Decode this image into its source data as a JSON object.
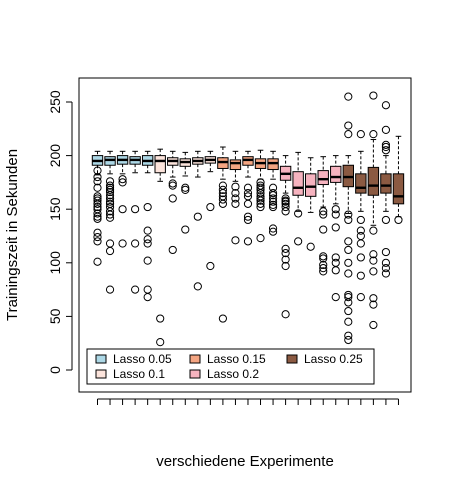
{
  "chart_data": {
    "type": "box",
    "ylabel": "Trainingszeit in Sekunden",
    "xlabel": "verschiedene Experimente",
    "ylim": [
      -12,
      268
    ],
    "yticks": [
      0,
      50,
      100,
      150,
      200,
      250
    ],
    "grid": false,
    "legend_position": "bottom-left",
    "legend": [
      {
        "label": "Lasso 0.05",
        "color": "#add8e6"
      },
      {
        "label": "Lasso 0.1",
        "color": "#fce4dc"
      },
      {
        "label": "Lasso 0.15",
        "color": "#f4a582"
      },
      {
        "label": "Lasso 0.2",
        "color": "#f6b3bf"
      },
      {
        "label": "Lasso 0.25",
        "color": "#8b5a42"
      }
    ],
    "boxes": [
      {
        "group": 0,
        "lower": 182,
        "q1": 191,
        "median": 195,
        "q3": 200,
        "upper": 204,
        "outliers": [
          186,
          180,
          176,
          170,
          162,
          160,
          158,
          155,
          152,
          150,
          146,
          143,
          141,
          128,
          124,
          120,
          101
        ]
      },
      {
        "group": 0,
        "lower": 183,
        "q1": 191,
        "median": 196,
        "q3": 199,
        "upper": 204,
        "outliers": [
          176,
          172,
          170,
          168,
          166,
          163,
          160,
          157,
          155,
          152,
          148,
          145,
          142,
          118,
          111,
          75
        ]
      },
      {
        "group": 0,
        "lower": 183,
        "q1": 192,
        "median": 196,
        "q3": 200,
        "upper": 204,
        "outliers": [
          178,
          175,
          150,
          118
        ]
      },
      {
        "group": 0,
        "lower": 184,
        "q1": 192,
        "median": 196,
        "q3": 199,
        "upper": 204,
        "outliers": [
          150,
          118,
          75
        ]
      },
      {
        "group": 0,
        "lower": 184,
        "q1": 191,
        "median": 195,
        "q3": 200,
        "upper": 204,
        "outliers": [
          152,
          130,
          122,
          118,
          102,
          75,
          68
        ]
      },
      {
        "group": 1,
        "lower": 176,
        "q1": 184,
        "median": 195,
        "q3": 200,
        "upper": 206,
        "outliers": [
          48,
          26
        ]
      },
      {
        "group": 1,
        "lower": 180,
        "q1": 191,
        "median": 195,
        "q3": 198,
        "upper": 204,
        "outliers": [
          174,
          172,
          160,
          112
        ]
      },
      {
        "group": 1,
        "lower": 181,
        "q1": 190,
        "median": 194,
        "q3": 197,
        "upper": 203,
        "outliers": [
          170,
          168,
          131
        ]
      },
      {
        "group": 1,
        "lower": 180,
        "q1": 192,
        "median": 195,
        "q3": 198,
        "upper": 204,
        "outliers": [
          143,
          78
        ]
      },
      {
        "group": 1,
        "lower": 185,
        "q1": 193,
        "median": 196,
        "q3": 199,
        "upper": 204,
        "outliers": [
          152,
          97
        ]
      },
      {
        "group": 2,
        "lower": 178,
        "q1": 188,
        "median": 194,
        "q3": 198,
        "upper": 208,
        "outliers": [
          172,
          168,
          165,
          162,
          159,
          155,
          48
        ]
      },
      {
        "group": 2,
        "lower": 176,
        "q1": 187,
        "median": 193,
        "q3": 196,
        "upper": 204,
        "outliers": [
          171,
          165,
          160,
          155,
          121
        ]
      },
      {
        "group": 2,
        "lower": 180,
        "q1": 191,
        "median": 196,
        "q3": 199,
        "upper": 204,
        "outliers": [
          170,
          165,
          162,
          155,
          143,
          140,
          120
        ]
      },
      {
        "group": 2,
        "lower": 178,
        "q1": 188,
        "median": 193,
        "q3": 197,
        "upper": 205,
        "outliers": [
          175,
          172,
          170,
          168,
          165,
          162,
          160,
          158,
          155,
          152,
          123
        ]
      },
      {
        "group": 2,
        "lower": 178,
        "q1": 187,
        "median": 193,
        "q3": 197,
        "upper": 204,
        "outliers": [
          170,
          165,
          163,
          160,
          157,
          154,
          152,
          132,
          129
        ]
      },
      {
        "group": 3,
        "lower": 165,
        "q1": 177,
        "median": 183,
        "q3": 190,
        "upper": 200,
        "outliers": [
          160,
          158,
          157,
          155,
          152,
          148,
          113,
          109,
          103,
          97,
          52
        ]
      },
      {
        "group": 3,
        "lower": 148,
        "q1": 163,
        "median": 170,
        "q3": 185,
        "upper": 203,
        "outliers": [
          146,
          120
        ]
      },
      {
        "group": 3,
        "lower": 147,
        "q1": 162,
        "median": 171,
        "q3": 183,
        "upper": 198,
        "outliers": [
          115
        ]
      },
      {
        "group": 3,
        "lower": 152,
        "q1": 173,
        "median": 178,
        "q3": 186,
        "upper": 199,
        "outliers": [
          148,
          145,
          131,
          106,
          104,
          98,
          95,
          92
        ]
      },
      {
        "group": 3,
        "lower": 155,
        "q1": 175,
        "median": 180,
        "q3": 190,
        "upper": 200,
        "outliers": [
          150,
          145,
          133,
          105,
          100,
          93,
          68
        ]
      },
      {
        "group": 4,
        "lower": 146,
        "q1": 171,
        "median": 180,
        "q3": 191,
        "upper": 200,
        "outliers": [
          255,
          228,
          220,
          145,
          140,
          120,
          112,
          100,
          90,
          70,
          68,
          63,
          55,
          45,
          32,
          28
        ]
      },
      {
        "group": 4,
        "lower": 148,
        "q1": 165,
        "median": 170,
        "q3": 183,
        "upper": 204,
        "outliers": [
          220,
          140,
          130,
          125,
          118,
          105,
          88,
          68
        ]
      },
      {
        "group": 4,
        "lower": 135,
        "q1": 163,
        "median": 172,
        "q3": 189,
        "upper": 215,
        "outliers": [
          256,
          220,
          130,
          108,
          102,
          92,
          67,
          61,
          42
        ]
      },
      {
        "group": 4,
        "lower": 148,
        "q1": 165,
        "median": 172,
        "q3": 183,
        "upper": 200,
        "outliers": [
          247,
          224,
          210,
          208,
          205,
          140,
          110,
          100,
          95,
          90
        ]
      },
      {
        "group": 4,
        "lower": 143,
        "q1": 155,
        "median": 162,
        "q3": 183,
        "upper": 218,
        "outliers": [
          140
        ]
      }
    ]
  }
}
